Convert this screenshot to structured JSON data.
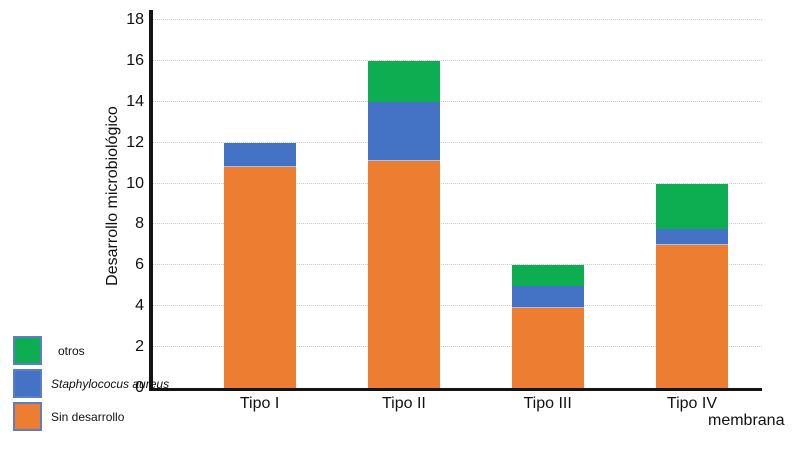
{
  "chart_data": {
    "type": "bar",
    "stacked": true,
    "title": "",
    "x_axis_title": "membrana",
    "y_axis_title": "Desarrollo microbiológico",
    "categories": [
      "Tipo I",
      "Tipo II",
      "Tipo III",
      "Tipo IV"
    ],
    "series": [
      {
        "name": "Sin desarrollo",
        "color": "#ED7D31",
        "italic": false,
        "values": [
          10.8,
          11.1,
          3.9,
          7.0
        ]
      },
      {
        "name": "Staphylococus aureus",
        "color": "#4472C4",
        "italic": true,
        "values": [
          1.2,
          2.9,
          1.1,
          0.8
        ]
      },
      {
        "name": "otros",
        "color": "#0CAE51",
        "italic": false,
        "values": [
          0,
          2.0,
          1.0,
          2.2
        ]
      }
    ],
    "bar_totals": [
      12,
      16,
      6,
      10
    ],
    "ylim": [
      0,
      18
    ],
    "ytick_step": 2,
    "grid": "horizontal-dotted",
    "legend_position": "bottom-left",
    "legend_order": [
      "otros",
      "Staphylococus aureus",
      "Sin desarrollo"
    ]
  },
  "colors": {
    "axis": "#141414",
    "gridline": "#c8c8c8",
    "swatch_border": "#5b7ec9",
    "background": "#ffffff"
  }
}
